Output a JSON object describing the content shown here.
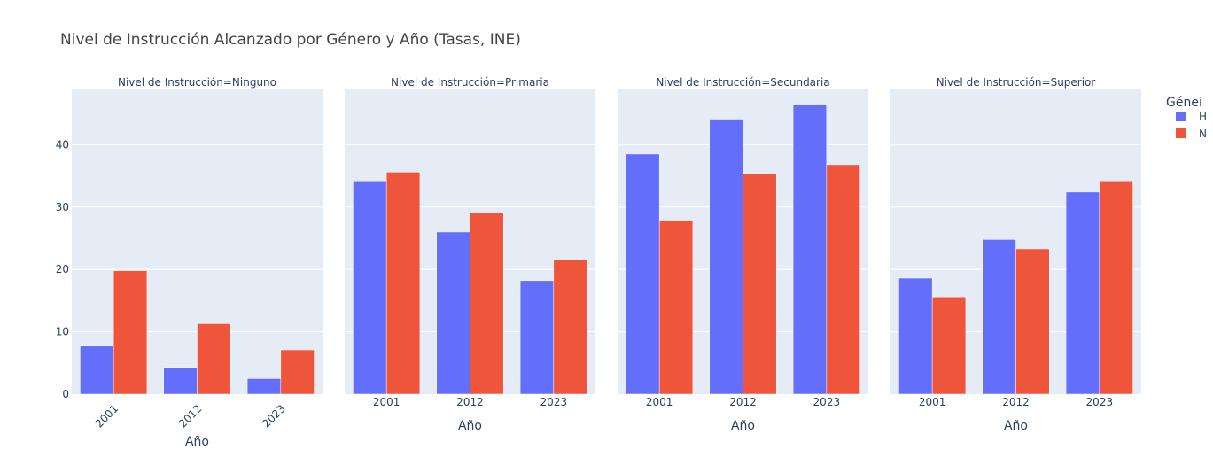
{
  "chart_data": {
    "type": "bar",
    "title": "Nivel de Instrucción Alcanzado por Género y Año (Tasas, INE)",
    "xlabel": "Año",
    "ylim": [
      0,
      49
    ],
    "yticks": [
      0,
      10,
      20,
      30,
      40
    ],
    "categories": [
      "2001",
      "2012",
      "2023"
    ],
    "legend": {
      "title": "Génei",
      "position": "right",
      "entries": [
        "H",
        "N"
      ]
    },
    "colors": {
      "H": "#636efa",
      "N": "#ef553b",
      "plot_bg": "#e5ecf6"
    },
    "grid": true,
    "panels": [
      {
        "title": "Nivel de Instrucción=Ninguno",
        "series": [
          {
            "name": "H",
            "values": [
              7.7,
              4.3,
              2.5
            ]
          },
          {
            "name": "N",
            "values": [
              19.8,
              11.3,
              7.1
            ]
          }
        ]
      },
      {
        "title": "Nivel de Instrucción=Primaria",
        "series": [
          {
            "name": "H",
            "values": [
              34.2,
              26.0,
              18.2
            ]
          },
          {
            "name": "N",
            "values": [
              35.6,
              29.1,
              21.6
            ]
          }
        ]
      },
      {
        "title": "Nivel de Instrucción=Secundaria",
        "series": [
          {
            "name": "H",
            "values": [
              38.5,
              44.1,
              46.5
            ]
          },
          {
            "name": "N",
            "values": [
              27.9,
              35.4,
              36.8
            ]
          }
        ]
      },
      {
        "title": "Nivel de Instrucción=Superior",
        "series": [
          {
            "name": "H",
            "values": [
              18.6,
              24.8,
              32.4
            ]
          },
          {
            "name": "N",
            "values": [
              15.6,
              23.3,
              34.2
            ]
          }
        ]
      }
    ]
  }
}
